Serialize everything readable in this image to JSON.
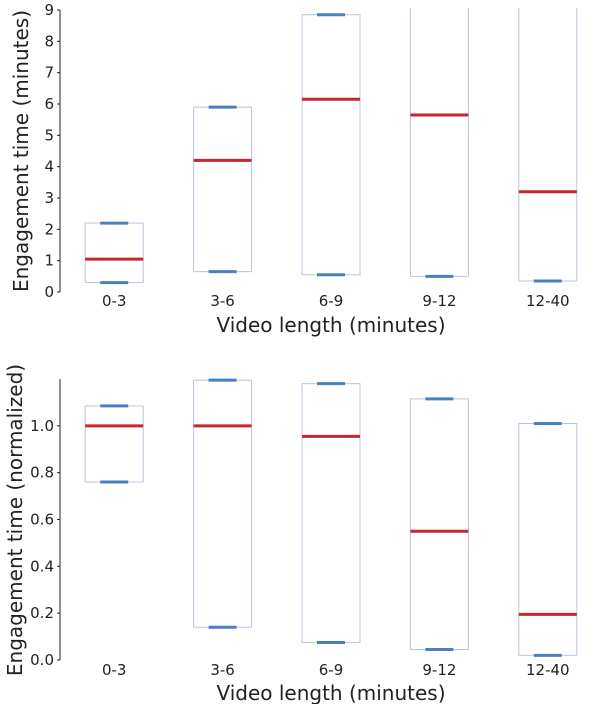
{
  "chart_data": [
    {
      "type": "box",
      "xlabel": "Video length (minutes)",
      "ylabel": "Engagement time (minutes)",
      "categories": [
        "0-3",
        "3-6",
        "6-9",
        "9-12",
        "12-40"
      ],
      "ylim": [
        0,
        9
      ],
      "yticks": [
        "0",
        "1",
        "2",
        "3",
        "4",
        "5",
        "6",
        "7",
        "8",
        "9"
      ],
      "boxes": [
        {
          "low": 0.3,
          "median": 1.05,
          "high": 2.2
        },
        {
          "low": 0.65,
          "median": 4.2,
          "high": 5.9
        },
        {
          "low": 0.55,
          "median": 6.15,
          "high": 8.85
        },
        {
          "low": 0.5,
          "median": 5.65,
          "high": 9.05
        },
        {
          "low": 0.35,
          "median": 3.2,
          "high": 9.1
        }
      ],
      "grid": false,
      "colors": {
        "box": "#b8c4dc",
        "median": "#c8262c",
        "whisker": "#4a7fc1",
        "axis": "#222222"
      }
    },
    {
      "type": "box",
      "xlabel": "Video length (minutes)",
      "ylabel": "Engagement time (normalized)",
      "categories": [
        "0-3",
        "3-6",
        "6-9",
        "9-12",
        "12-40"
      ],
      "ylim": [
        0,
        1.2
      ],
      "yticks": [
        "0.0",
        "0.2",
        "0.4",
        "0.6",
        "0.8",
        "1.0"
      ],
      "boxes": [
        {
          "low": 0.76,
          "median": 1.0,
          "high": 1.085
        },
        {
          "low": 0.14,
          "median": 1.0,
          "high": 1.195
        },
        {
          "low": 0.075,
          "median": 0.955,
          "high": 1.18
        },
        {
          "low": 0.045,
          "median": 0.55,
          "high": 1.115
        },
        {
          "low": 0.02,
          "median": 0.195,
          "high": 1.01
        }
      ],
      "grid": false,
      "colors": {
        "box": "#b8c4dc",
        "median": "#c8262c",
        "whisker": "#4a7fc1",
        "axis": "#222222"
      }
    }
  ]
}
